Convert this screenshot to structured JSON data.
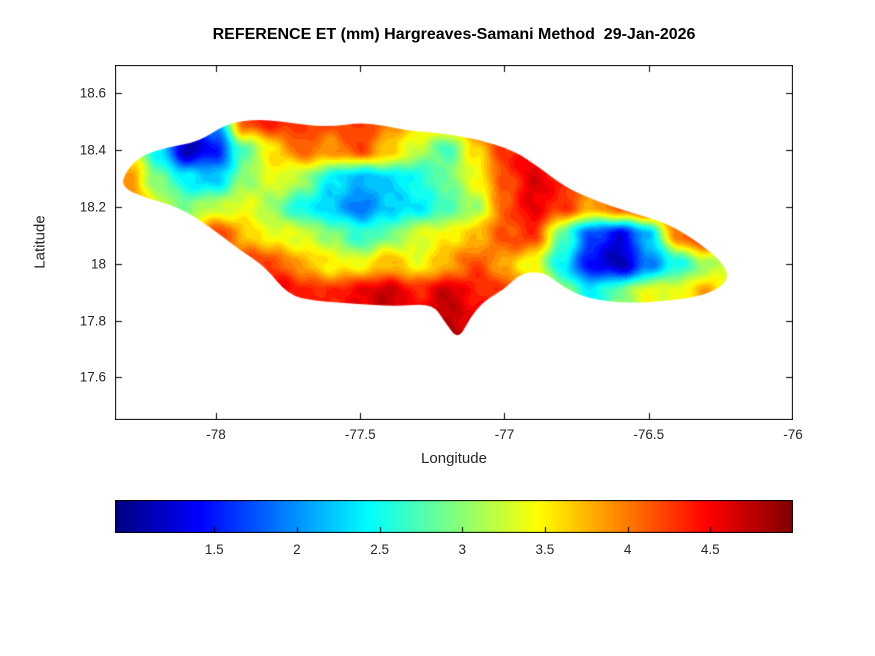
{
  "chart_data": {
    "type": "heatmap",
    "title": "REFERENCE ET (mm) Hargreaves-Samani Method  29-Jan-2026",
    "xlabel": "Longitude",
    "ylabel": "Latitude",
    "xlim": [
      -78.35,
      -76.0
    ],
    "ylim": [
      17.45,
      18.7
    ],
    "xticks": [
      -78,
      -77.5,
      -77,
      -76.5,
      -76
    ],
    "yticks": [
      18.6,
      18.4,
      18.2,
      18,
      17.8,
      17.6
    ],
    "grid_on": false,
    "colormap": "jet",
    "colorbar": {
      "orientation": "horizontal",
      "vmin": 0.9,
      "vmax": 5.0,
      "ticks": [
        1.5,
        2,
        2.5,
        3,
        3.5,
        4,
        4.5
      ]
    },
    "grid": {
      "lon_start": -78.4,
      "lon_step": 0.1,
      "lat_start": 18.6,
      "lat_step": -0.1,
      "values": [
        [
          3.0,
          3.2,
          2.6,
          1.4,
          2.0,
          4.2,
          4.4,
          4.3,
          4.2,
          4.3,
          4.0,
          3.6,
          3.8,
          4.2,
          4.4,
          4.5,
          4.4,
          4.2,
          4.0,
          3.8,
          3.6,
          3.5,
          3.4,
          3.4
        ],
        [
          3.0,
          3.2,
          2.6,
          1.4,
          2.0,
          4.2,
          4.4,
          4.3,
          4.2,
          4.3,
          4.0,
          3.6,
          3.8,
          4.2,
          4.4,
          4.5,
          4.4,
          4.2,
          4.0,
          3.8,
          3.6,
          3.5,
          3.4,
          3.4
        ],
        [
          3.2,
          3.4,
          2.4,
          1.1,
          1.5,
          2.8,
          3.6,
          4.1,
          3.9,
          4.2,
          3.7,
          3.2,
          2.7,
          3.6,
          4.3,
          4.6,
          4.4,
          4.1,
          3.9,
          3.8,
          3.7,
          3.6,
          3.5,
          3.4
        ],
        [
          3.6,
          3.9,
          2.9,
          2.4,
          2.2,
          3.0,
          3.4,
          3.1,
          2.4,
          2.1,
          2.3,
          2.5,
          2.9,
          3.4,
          4.2,
          4.6,
          4.4,
          4.0,
          4.2,
          4.0,
          3.8,
          3.7,
          3.6,
          3.5
        ],
        [
          3.8,
          4.1,
          3.3,
          2.9,
          3.2,
          3.4,
          3.0,
          2.5,
          2.2,
          1.9,
          2.2,
          2.4,
          2.7,
          3.1,
          4.1,
          4.6,
          4.3,
          3.8,
          4.2,
          4.4,
          4.3,
          4.5,
          4.0,
          3.8
        ],
        [
          4.0,
          4.2,
          4.4,
          3.8,
          4.3,
          3.7,
          3.4,
          3.3,
          3.0,
          2.6,
          2.9,
          3.3,
          3.5,
          3.7,
          4.2,
          4.3,
          2.8,
          1.7,
          1.3,
          2.2,
          4.0,
          4.6,
          4.2,
          3.8
        ],
        [
          4.3,
          4.5,
          4.7,
          4.7,
          4.6,
          4.3,
          4.2,
          3.8,
          3.5,
          3.4,
          3.8,
          3.4,
          3.8,
          4.2,
          3.8,
          3.4,
          2.4,
          1.4,
          1.1,
          1.9,
          2.5,
          3.1,
          3.3,
          3.2
        ],
        [
          4.4,
          4.6,
          4.8,
          4.8,
          4.8,
          4.8,
          4.7,
          4.4,
          4.3,
          4.6,
          4.7,
          4.4,
          4.7,
          4.4,
          4.3,
          3.8,
          3.0,
          2.4,
          2.9,
          3.4,
          3.4,
          3.8,
          3.2,
          3.0
        ],
        [
          4.4,
          4.6,
          4.8,
          4.8,
          4.8,
          4.8,
          4.7,
          4.5,
          4.4,
          4.6,
          4.7,
          4.6,
          4.8,
          4.6,
          4.4,
          4.0,
          3.4,
          2.8,
          3.0,
          3.4,
          3.5,
          3.8,
          3.3,
          3.0
        ],
        [
          4.4,
          4.6,
          4.8,
          4.8,
          4.8,
          4.8,
          4.7,
          4.5,
          4.4,
          4.6,
          4.7,
          4.6,
          4.8,
          4.6,
          4.4,
          4.0,
          3.5,
          3.0,
          3.1,
          3.4,
          3.5,
          3.8,
          3.3,
          3.0
        ],
        [
          4.4,
          4.6,
          4.8,
          4.8,
          4.8,
          4.8,
          4.7,
          4.5,
          4.4,
          4.6,
          4.7,
          4.6,
          4.8,
          4.6,
          4.4,
          4.0,
          3.5,
          3.0,
          3.1,
          3.4,
          3.5,
          3.8,
          3.3,
          3.0
        ]
      ]
    },
    "boundary": [
      [
        -78.33,
        18.27
      ],
      [
        -78.31,
        18.33
      ],
      [
        -78.26,
        18.38
      ],
      [
        -78.17,
        18.41
      ],
      [
        -78.06,
        18.43
      ],
      [
        -77.97,
        18.49
      ],
      [
        -77.87,
        18.51
      ],
      [
        -77.76,
        18.5
      ],
      [
        -77.62,
        18.48
      ],
      [
        -77.48,
        18.5
      ],
      [
        -77.35,
        18.47
      ],
      [
        -77.22,
        18.46
      ],
      [
        -77.1,
        18.44
      ],
      [
        -76.97,
        18.4
      ],
      [
        -76.88,
        18.34
      ],
      [
        -76.79,
        18.27
      ],
      [
        -76.68,
        18.22
      ],
      [
        -76.56,
        18.18
      ],
      [
        -76.43,
        18.14
      ],
      [
        -76.32,
        18.07
      ],
      [
        -76.24,
        18.0
      ],
      [
        -76.22,
        17.94
      ],
      [
        -76.3,
        17.89
      ],
      [
        -76.43,
        17.87
      ],
      [
        -76.58,
        17.86
      ],
      [
        -76.72,
        17.88
      ],
      [
        -76.8,
        17.92
      ],
      [
        -76.86,
        17.97
      ],
      [
        -76.94,
        17.97
      ],
      [
        -77.0,
        17.91
      ],
      [
        -77.07,
        17.87
      ],
      [
        -77.12,
        17.81
      ],
      [
        -77.16,
        17.73
      ],
      [
        -77.21,
        17.8
      ],
      [
        -77.25,
        17.86
      ],
      [
        -77.38,
        17.85
      ],
      [
        -77.52,
        17.86
      ],
      [
        -77.66,
        17.87
      ],
      [
        -77.75,
        17.89
      ],
      [
        -77.83,
        17.99
      ],
      [
        -77.92,
        18.05
      ],
      [
        -78.02,
        18.13
      ],
      [
        -78.13,
        18.2
      ],
      [
        -78.24,
        18.23
      ]
    ]
  }
}
